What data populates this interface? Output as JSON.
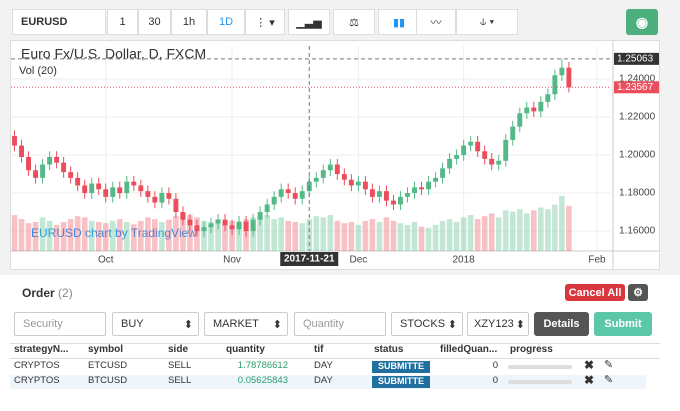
{
  "toolbar": {
    "symbol": "EURUSD",
    "intervals": [
      "1",
      "30",
      "1h",
      "1D"
    ]
  },
  "chart_data": {
    "type": "candlestick",
    "title": "Euro Fx/U.S. Dollar, D, FXCM",
    "indicator": "Vol (20)",
    "watermark": "EURUSD chart by TradingView",
    "up_color": "#53b987",
    "down_color": "#eb4d5c",
    "open": [
      1.21,
      1.205,
      1.199,
      1.192,
      1.188,
      1.195,
      1.199,
      1.196,
      1.191,
      1.188,
      1.184,
      1.18,
      1.185,
      1.182,
      1.178,
      1.183,
      1.18,
      1.186,
      1.184,
      1.181,
      1.178,
      1.175,
      1.18,
      1.177,
      1.17,
      1.166,
      1.163,
      1.16,
      1.162,
      1.164,
      1.166,
      1.163,
      1.161,
      1.165,
      1.16,
      1.166,
      1.17,
      1.174,
      1.178,
      1.182,
      1.18,
      1.177,
      1.181,
      1.186,
      1.188,
      1.192,
      1.195,
      1.19,
      1.187,
      1.184,
      1.186,
      1.182,
      1.178,
      1.181,
      1.176,
      1.174,
      1.178,
      1.18,
      1.183,
      1.182,
      1.186,
      1.188,
      1.193,
      1.198,
      1.2,
      1.205,
      1.207,
      1.202,
      1.198,
      1.195,
      1.197,
      1.208,
      1.215,
      1.222,
      1.225,
      1.223,
      1.228,
      1.232,
      1.242,
      1.246
    ],
    "high": [
      1.213,
      1.208,
      1.202,
      1.195,
      1.198,
      1.202,
      1.202,
      1.199,
      1.194,
      1.191,
      1.187,
      1.188,
      1.188,
      1.185,
      1.186,
      1.186,
      1.189,
      1.189,
      1.187,
      1.184,
      1.181,
      1.183,
      1.183,
      1.18,
      1.173,
      1.169,
      1.166,
      1.165,
      1.167,
      1.169,
      1.169,
      1.166,
      1.168,
      1.168,
      1.169,
      1.173,
      1.177,
      1.181,
      1.185,
      1.185,
      1.183,
      1.184,
      1.189,
      1.191,
      1.195,
      1.198,
      1.198,
      1.193,
      1.19,
      1.189,
      1.189,
      1.185,
      1.184,
      1.184,
      1.179,
      1.181,
      1.183,
      1.186,
      1.186,
      1.189,
      1.191,
      1.196,
      1.201,
      1.203,
      1.208,
      1.21,
      1.21,
      1.205,
      1.201,
      1.2,
      1.211,
      1.218,
      1.225,
      1.228,
      1.228,
      1.231,
      1.235,
      1.245,
      1.25063,
      1.249
    ],
    "low": [
      1.202,
      1.196,
      1.189,
      1.185,
      1.185,
      1.192,
      1.193,
      1.188,
      1.185,
      1.181,
      1.177,
      1.177,
      1.179,
      1.175,
      1.175,
      1.177,
      1.177,
      1.181,
      1.178,
      1.175,
      1.172,
      1.172,
      1.174,
      1.167,
      1.163,
      1.16,
      1.157,
      1.157,
      1.159,
      1.161,
      1.16,
      1.158,
      1.158,
      1.157,
      1.157,
      1.163,
      1.167,
      1.171,
      1.175,
      1.177,
      1.174,
      1.174,
      1.178,
      1.183,
      1.185,
      1.189,
      1.187,
      1.184,
      1.181,
      1.181,
      1.179,
      1.175,
      1.175,
      1.173,
      1.171,
      1.171,
      1.175,
      1.177,
      1.179,
      1.179,
      1.183,
      1.185,
      1.19,
      1.195,
      1.197,
      1.202,
      1.199,
      1.195,
      1.192,
      1.192,
      1.194,
      1.205,
      1.212,
      1.219,
      1.22,
      1.22,
      1.225,
      1.229,
      1.239,
      1.233
    ],
    "close": [
      1.205,
      1.199,
      1.192,
      1.188,
      1.195,
      1.199,
      1.196,
      1.191,
      1.188,
      1.184,
      1.18,
      1.185,
      1.182,
      1.178,
      1.183,
      1.18,
      1.186,
      1.184,
      1.181,
      1.178,
      1.175,
      1.18,
      1.177,
      1.17,
      1.166,
      1.163,
      1.16,
      1.162,
      1.164,
      1.166,
      1.163,
      1.161,
      1.165,
      1.16,
      1.166,
      1.17,
      1.174,
      1.178,
      1.182,
      1.18,
      1.177,
      1.181,
      1.186,
      1.188,
      1.192,
      1.195,
      1.19,
      1.187,
      1.184,
      1.186,
      1.182,
      1.178,
      1.181,
      1.176,
      1.174,
      1.178,
      1.18,
      1.183,
      1.182,
      1.186,
      1.188,
      1.193,
      1.198,
      1.2,
      1.205,
      1.207,
      1.202,
      1.198,
      1.195,
      1.197,
      1.208,
      1.215,
      1.222,
      1.225,
      1.223,
      1.228,
      1.232,
      1.242,
      1.246,
      1.23567
    ],
    "volume": [
      62,
      55,
      48,
      50,
      58,
      52,
      45,
      50,
      55,
      60,
      58,
      52,
      50,
      48,
      52,
      55,
      50,
      46,
      52,
      58,
      55,
      50,
      54,
      60,
      65,
      62,
      58,
      52,
      50,
      55,
      50,
      52,
      48,
      55,
      58,
      60,
      62,
      55,
      58,
      52,
      50,
      48,
      55,
      60,
      58,
      62,
      52,
      48,
      50,
      45,
      52,
      55,
      50,
      58,
      52,
      48,
      45,
      50,
      42,
      40,
      45,
      52,
      55,
      50,
      58,
      62,
      55,
      60,
      65,
      58,
      70,
      68,
      72,
      65,
      70,
      75,
      72,
      80,
      95,
      78
    ],
    "xlim": [
      -0.5,
      85
    ],
    "ylim": [
      1.1495,
      1.2574
    ],
    "xticks": [
      {
        "value": 13,
        "label": "Oct"
      },
      {
        "value": 31,
        "label": "Nov"
      },
      {
        "value": 49,
        "label": "Dec"
      },
      {
        "value": 64,
        "label": "2018"
      },
      {
        "value": 83,
        "label": "Feb"
      }
    ],
    "yticks": [
      {
        "value": 1.16,
        "label": "1.16000"
      },
      {
        "value": 1.18,
        "label": "1.18000"
      },
      {
        "value": 1.2,
        "label": "1.20000"
      },
      {
        "value": 1.22,
        "label": "1.22000"
      },
      {
        "value": 1.24,
        "label": "1.24000"
      }
    ],
    "crosshair": {
      "x": {
        "value": 42,
        "label": "2017-11-21"
      },
      "y": 1.25063
    },
    "last_price": 1.23567
  },
  "order": {
    "title": "Order",
    "count": "(2)",
    "cancel_all": "Cancel All",
    "form": {
      "security": "Security",
      "side": "BUY",
      "order_type": "MARKET",
      "quantity": "Quantity",
      "asset": "STOCKS",
      "account": "XZY123",
      "details": "Details",
      "submit": "Submit"
    },
    "table": {
      "headers": [
        "strategyN...",
        "symbol",
        "side",
        "quantity",
        "tif",
        "status",
        "filledQuan...",
        "progress"
      ],
      "rows": [
        [
          "CRYPTOS",
          "ETCUSD",
          "SELL",
          1.78786612,
          "DAY",
          "SUBMITTE",
          0
        ],
        [
          "CRYPTOS",
          "BTCUSD",
          "SELL",
          0.05625843,
          "DAY",
          "SUBMITTE",
          0
        ]
      ]
    }
  }
}
